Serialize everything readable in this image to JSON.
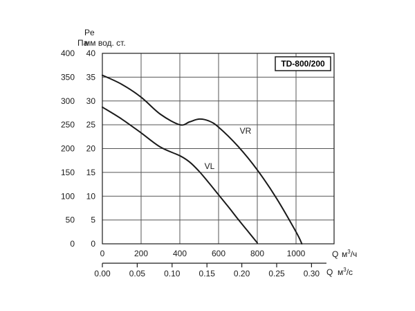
{
  "chart_data": {
    "type": "line",
    "model_label": "TD-800/200",
    "y_axis_pa": {
      "unit": "Па",
      "range": [
        0,
        400
      ],
      "ticks": [
        "0",
        "50",
        "100",
        "150",
        "200",
        "250",
        "300",
        "350",
        "400"
      ]
    },
    "y_axis_mm": {
      "unit_symbol": "Pe",
      "unit": "мм вод. ст.",
      "range": [
        0,
        40
      ],
      "ticks": [
        "0",
        "5",
        "10",
        "15",
        "20",
        "25",
        "30",
        "35",
        "40"
      ]
    },
    "x_axis_m3h": {
      "symbol": "Q",
      "unit_base": "м",
      "unit_exp": "3",
      "unit_rest": "/ч",
      "range": [
        0,
        1200
      ],
      "ticks": [
        "0",
        "200",
        "400",
        "600",
        "800",
        "1000"
      ]
    },
    "x_axis_m3s": {
      "symbol": "Q",
      "unit_base": "м",
      "unit_exp": "3",
      "unit_rest": "/с",
      "range": [
        0,
        0.3333
      ],
      "ticks": [
        "0.00",
        "0.05",
        "0.10",
        "0.15",
        "0.20",
        "0.25",
        "0.30"
      ]
    },
    "grid": true,
    "series": [
      {
        "name": "VR",
        "x": [
          0,
          100,
          200,
          300,
          400,
          450,
          500,
          550,
          600,
          700,
          800,
          900,
          1000,
          1030
        ],
        "y": [
          354,
          335,
          308,
          272,
          250,
          256,
          262,
          258,
          245,
          205,
          155,
          95,
          25,
          0
        ]
      },
      {
        "name": "VL",
        "x": [
          0,
          100,
          200,
          300,
          400,
          450,
          500,
          550,
          600,
          650,
          700,
          750,
          800
        ],
        "y": [
          287,
          262,
          233,
          203,
          185,
          172,
          152,
          128,
          103,
          78,
          52,
          27,
          2
        ]
      }
    ]
  }
}
